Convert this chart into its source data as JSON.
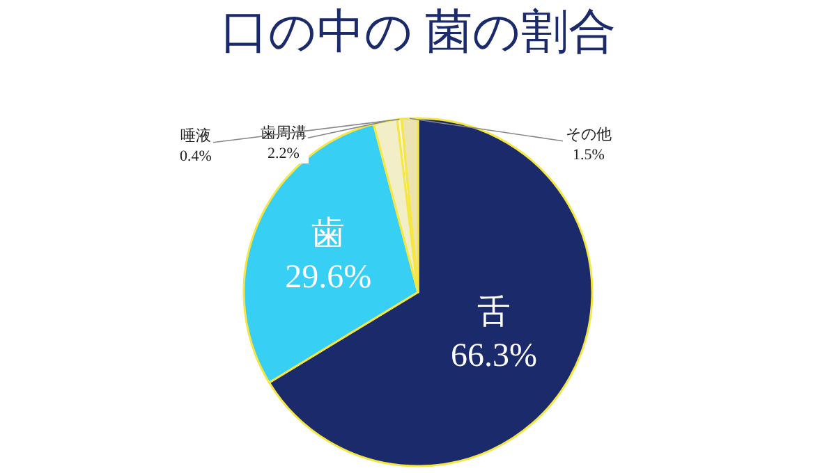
{
  "chart_data": {
    "type": "pie",
    "title": "口の中の 菌の割合",
    "categories": [
      "舌",
      "歯",
      "歯周溝",
      "唾液",
      "その他"
    ],
    "values": [
      66.3,
      29.6,
      2.2,
      0.4,
      1.5
    ],
    "value_labels": [
      "66.3%",
      "29.6%",
      "2.2%",
      "0.4%",
      "1.5%"
    ],
    "colors": [
      "#1b2a6b",
      "#38cff5",
      "#f2eec8",
      "#f8f4e0",
      "#ece4b0"
    ],
    "legend": false
  }
}
